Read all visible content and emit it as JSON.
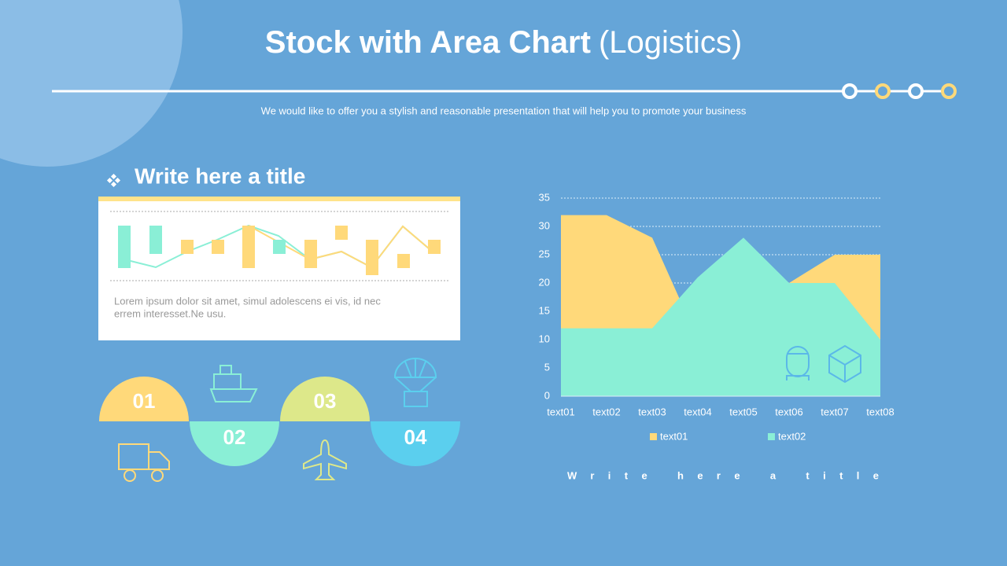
{
  "header": {
    "title_bold": "Stock with Area Chart",
    "title_light": "(Logistics)",
    "subtitle": "We would like to offer you a stylish and reasonable presentation that will help you to promote your business"
  },
  "left_panel": {
    "title": "Write here a title",
    "text_lines": [
      "Lorem ipsum dolor sit amet, simul adolescens ei vis, id nec",
      "errem interesset.Ne usu."
    ],
    "steps": [
      "01",
      "02",
      "03",
      "04"
    ]
  },
  "chart_data": {
    "type": "area",
    "categories": [
      "text01",
      "text02",
      "text03",
      "text04",
      "text05",
      "text06",
      "text07",
      "text08"
    ],
    "series": [
      {
        "name": "text01",
        "color": "#ffd97a",
        "values": [
          32,
          32,
          28,
          10,
          15,
          20,
          25,
          25
        ]
      },
      {
        "name": "text02",
        "color": "#8aefd6",
        "values": [
          12,
          12,
          12,
          21,
          28,
          20,
          20,
          10
        ]
      }
    ],
    "ylim": [
      0,
      35
    ],
    "yticks": [
      0,
      5,
      10,
      15,
      20,
      25,
      30,
      35
    ],
    "grid": true,
    "legend": "bottom",
    "caption": "Write here a title"
  }
}
